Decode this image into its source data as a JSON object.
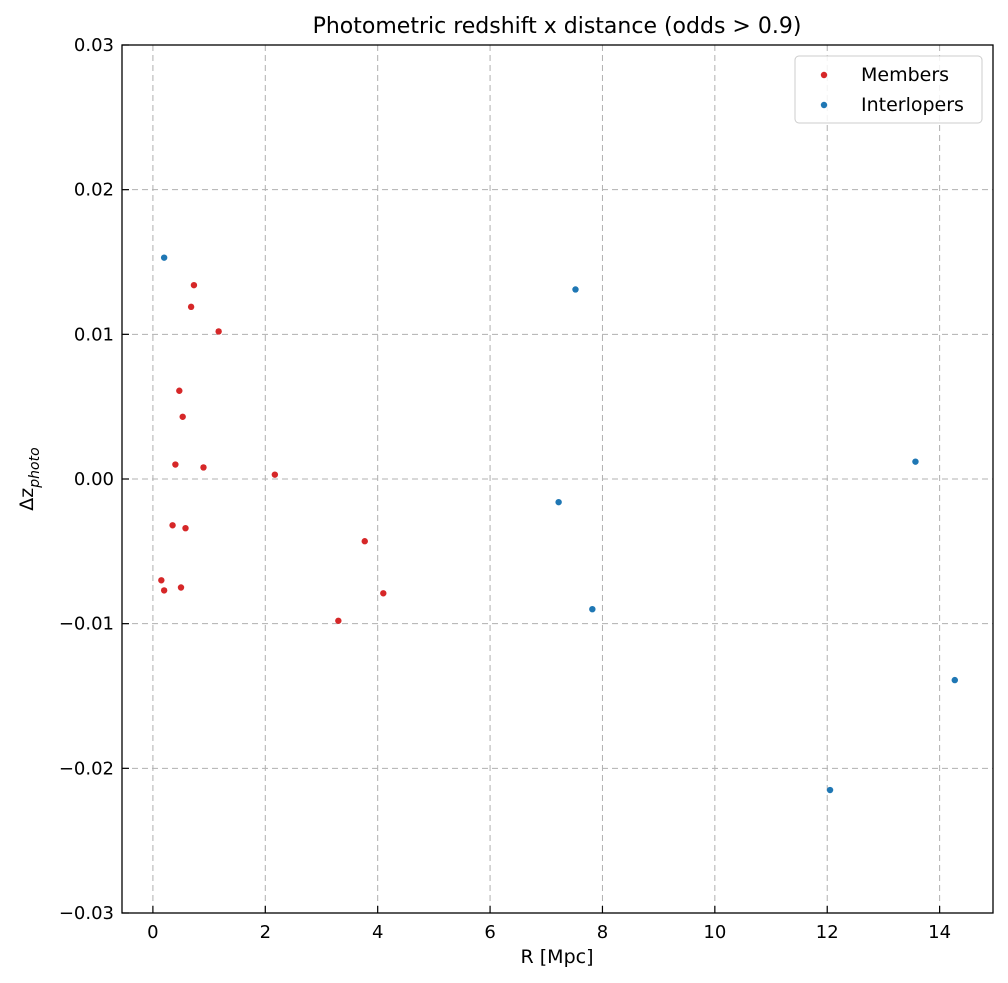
{
  "chart_data": {
    "type": "scatter",
    "title": "Photometric redshift x distance (odds > 0.9)",
    "xlabel": "R [Mpc]",
    "ylabel_main": "Δz",
    "ylabel_sub": "photo",
    "xlim": [
      -0.55,
      14.95
    ],
    "ylim": [
      -0.03,
      0.03
    ],
    "xticks": [
      0,
      2,
      4,
      6,
      8,
      10,
      12,
      14
    ],
    "xtick_labels": [
      "0",
      "2",
      "4",
      "6",
      "8",
      "10",
      "12",
      "14"
    ],
    "yticks": [
      -0.03,
      -0.02,
      -0.01,
      0.0,
      0.01,
      0.02,
      0.03
    ],
    "ytick_labels": [
      "−0.03",
      "−0.02",
      "−0.01",
      "0.00",
      "0.01",
      "0.02",
      "0.03"
    ],
    "grid": true,
    "legend_position": "top-right",
    "series": [
      {
        "name": "Members",
        "color": "#d62728",
        "points": [
          {
            "x": 0.15,
            "y": -0.007
          },
          {
            "x": 0.2,
            "y": -0.0077
          },
          {
            "x": 0.35,
            "y": -0.0032
          },
          {
            "x": 0.4,
            "y": 0.001
          },
          {
            "x": 0.47,
            "y": 0.0061
          },
          {
            "x": 0.5,
            "y": -0.0075
          },
          {
            "x": 0.53,
            "y": 0.0043
          },
          {
            "x": 0.58,
            "y": -0.0034
          },
          {
            "x": 0.68,
            "y": 0.0119
          },
          {
            "x": 0.73,
            "y": 0.0134
          },
          {
            "x": 0.9,
            "y": 0.0008
          },
          {
            "x": 1.17,
            "y": 0.0102
          },
          {
            "x": 2.17,
            "y": 0.0003
          },
          {
            "x": 3.3,
            "y": -0.0098
          },
          {
            "x": 3.77,
            "y": -0.0043
          },
          {
            "x": 4.1,
            "y": -0.0079
          }
        ]
      },
      {
        "name": "Interlopers",
        "color": "#1f77b4",
        "points": [
          {
            "x": 0.2,
            "y": 0.0153
          },
          {
            "x": 7.22,
            "y": -0.0016
          },
          {
            "x": 7.52,
            "y": 0.0131
          },
          {
            "x": 7.82,
            "y": -0.009
          },
          {
            "x": 12.05,
            "y": -0.0215
          },
          {
            "x": 13.57,
            "y": 0.0012
          },
          {
            "x": 14.27,
            "y": -0.0139
          }
        ]
      }
    ]
  }
}
